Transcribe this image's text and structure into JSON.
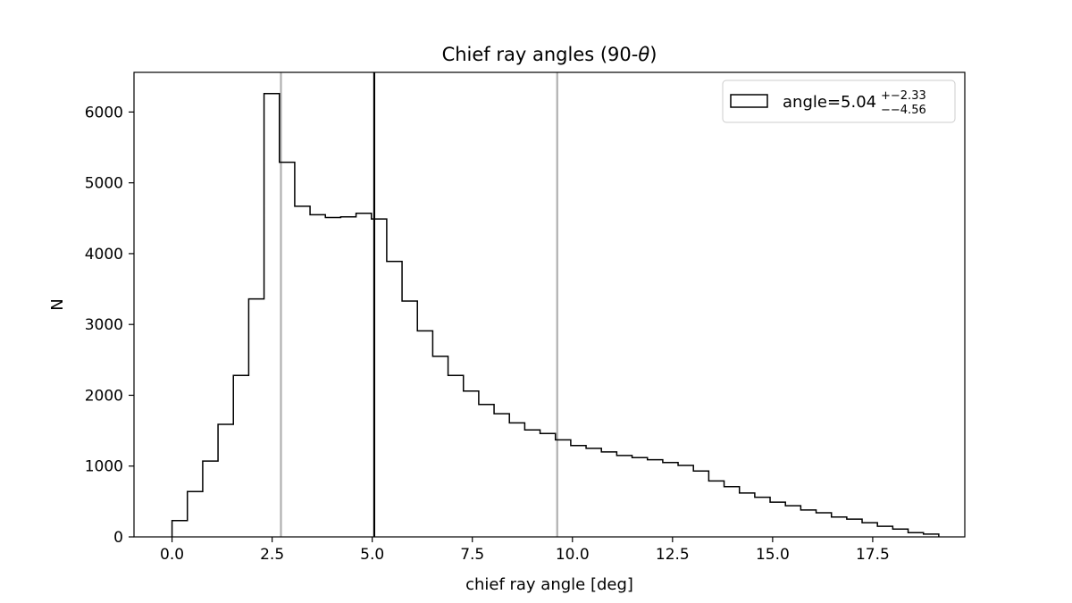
{
  "chart_data": {
    "type": "bar",
    "title_main": "Chief ray angles (90-",
    "title_symbol": "θ",
    "title_end": ")",
    "xlabel": "chief ray angle [deg]",
    "ylabel": "N",
    "xlim": [
      -0.95,
      19.8
    ],
    "ylim": [
      0,
      6560
    ],
    "xticks": [
      0.0,
      2.5,
      5.0,
      7.5,
      10.0,
      12.5,
      15.0,
      17.5
    ],
    "xtick_labels": [
      "0.0",
      "2.5",
      "5.0",
      "7.5",
      "10.0",
      "12.5",
      "15.0",
      "17.5"
    ],
    "yticks": [
      0,
      1000,
      2000,
      3000,
      4000,
      5000,
      6000
    ],
    "ytick_labels": [
      "0",
      "1000",
      "2000",
      "3000",
      "4000",
      "5000",
      "6000"
    ],
    "bin_start": 0.0,
    "bin_width": 0.383,
    "counts": [
      230,
      640,
      1070,
      1590,
      2280,
      3360,
      6260,
      5290,
      4670,
      4550,
      4510,
      4520,
      4570,
      4490,
      3890,
      3330,
      2910,
      2550,
      2280,
      2060,
      1870,
      1740,
      1610,
      1510,
      1460,
      1370,
      1290,
      1250,
      1200,
      1150,
      1120,
      1090,
      1050,
      1010,
      930,
      790,
      710,
      620,
      560,
      490,
      440,
      380,
      340,
      280,
      250,
      200,
      150,
      110,
      60,
      40
    ],
    "vlines": [
      {
        "x": 2.72,
        "color": "#b0b0b0"
      },
      {
        "x": 5.05,
        "color": "#000000"
      },
      {
        "x": 9.62,
        "color": "#b0b0b0"
      }
    ],
    "legend": {
      "placement": "top-right",
      "label": "angle=5.04",
      "sup": "+−2.33",
      "sub": "−−4.56"
    },
    "grid": false
  }
}
